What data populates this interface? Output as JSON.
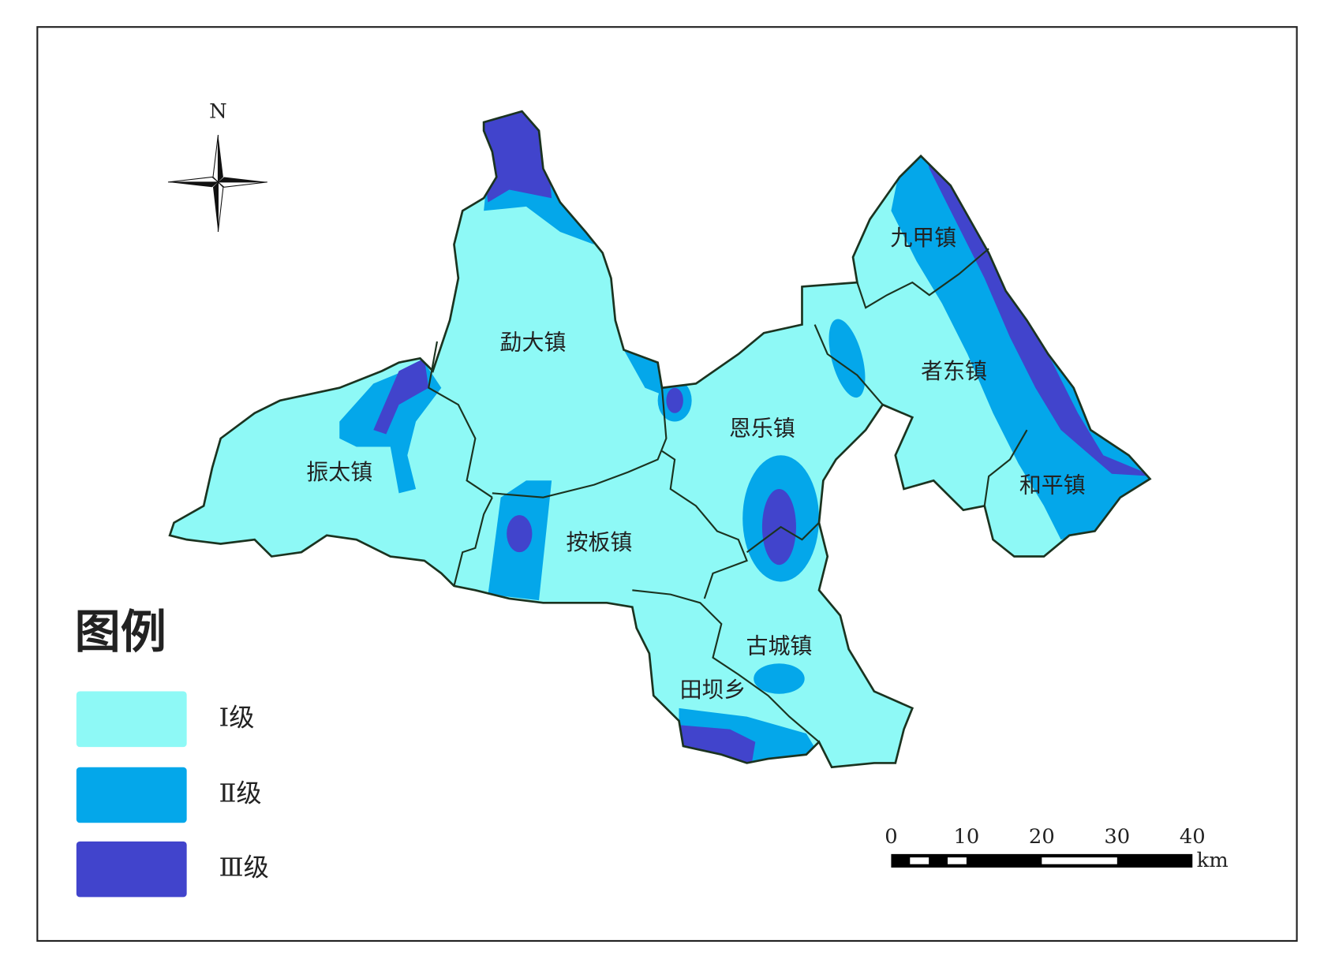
{
  "north": "N",
  "towns": [
    "勐大镇",
    "振太镇",
    "按板镇",
    "恩乐镇",
    "九甲镇",
    "者东镇",
    "和平镇",
    "古城镇",
    "田坝乡"
  ],
  "legend": {
    "title": "图例",
    "items": [
      {
        "label": "Ⅰ级",
        "color": "#8ef9f6"
      },
      {
        "label": "Ⅱ级",
        "color": "#04a7ea"
      },
      {
        "label": "Ⅲ级",
        "color": "#4144cc"
      }
    ]
  },
  "scale": {
    "ticks": [
      0,
      10,
      20,
      30,
      40
    ],
    "unit": "km"
  }
}
